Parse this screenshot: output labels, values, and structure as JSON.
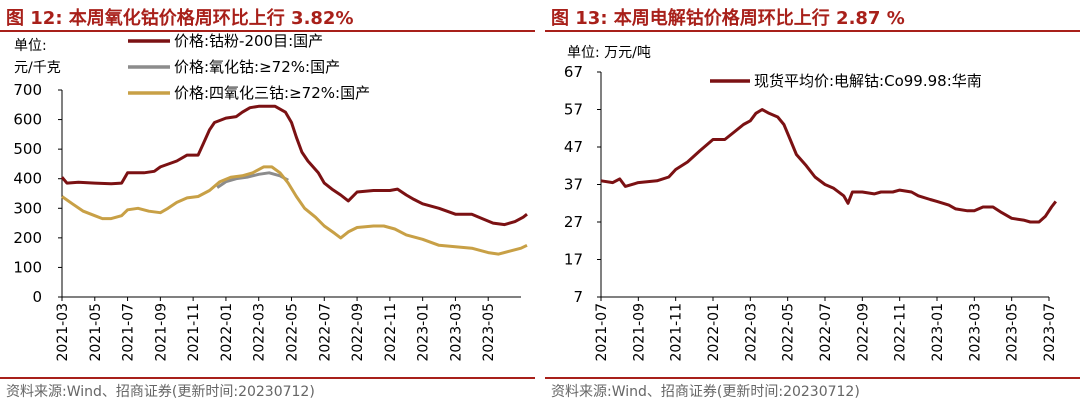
{
  "charts": [
    {
      "figure_title": "图 12:  本周氧化钴价格周环比上行 3.82%",
      "unit_line1": "单位:",
      "unit_line2": "元/千克",
      "source": "资料来源:Wind、招商证券(更新时间:20230712)"
    },
    {
      "figure_title": "图 13:  本周电解钴价格周环比上行 2.87 %",
      "unit_line1": "单位:  万元/吨",
      "source": "资料来源:Wind、招商证券(更新时间:20230712)"
    }
  ],
  "chart_data": [
    {
      "type": "line",
      "title": "图 12:  本周氧化钴价格周环比上行 3.82%",
      "ylabel": "单位: 元/千克",
      "ylim": [
        0,
        700
      ],
      "yticks": [
        0,
        100,
        200,
        300,
        400,
        500,
        600,
        700
      ],
      "xlim": [
        "2021-03",
        "2023-07"
      ],
      "xtick_labels": [
        "2021-03",
        "2021-05",
        "2021-07",
        "2021-09",
        "2021-11",
        "2022-01",
        "2022-03",
        "2022-05",
        "2022-07",
        "2022-09",
        "2022-11",
        "2023-01",
        "2023-03",
        "2023-05"
      ],
      "grid": false,
      "legend_position": "top-left",
      "series": [
        {
          "name": "价格:钴粉-200目:国产",
          "color": "#7b1113",
          "points": [
            [
              "2021-03-01",
              405
            ],
            [
              "2021-03-10",
              385
            ],
            [
              "2021-04-01",
              388
            ],
            [
              "2021-05-01",
              385
            ],
            [
              "2021-06-01",
              383
            ],
            [
              "2021-06-20",
              385
            ],
            [
              "2021-07-01",
              420
            ],
            [
              "2021-08-01",
              420
            ],
            [
              "2021-08-20",
              425
            ],
            [
              "2021-09-01",
              440
            ],
            [
              "2021-10-01",
              460
            ],
            [
              "2021-10-20",
              480
            ],
            [
              "2021-11-10",
              480
            ],
            [
              "2021-11-20",
              520
            ],
            [
              "2021-12-01",
              565
            ],
            [
              "2021-12-10",
              590
            ],
            [
              "2022-01-01",
              605
            ],
            [
              "2022-01-20",
              610
            ],
            [
              "2022-02-01",
              625
            ],
            [
              "2022-02-15",
              640
            ],
            [
              "2022-03-01",
              645
            ],
            [
              "2022-04-01",
              645
            ],
            [
              "2022-04-20",
              625
            ],
            [
              "2022-05-01",
              590
            ],
            [
              "2022-05-10",
              540
            ],
            [
              "2022-05-20",
              490
            ],
            [
              "2022-06-01",
              460
            ],
            [
              "2022-06-20",
              420
            ],
            [
              "2022-07-01",
              385
            ],
            [
              "2022-07-15",
              365
            ],
            [
              "2022-08-01",
              345
            ],
            [
              "2022-08-15",
              325
            ],
            [
              "2022-09-01",
              355
            ],
            [
              "2022-10-01",
              360
            ],
            [
              "2022-11-01",
              360
            ],
            [
              "2022-11-15",
              365
            ],
            [
              "2022-12-01",
              345
            ],
            [
              "2022-12-15",
              330
            ],
            [
              "2023-01-01",
              315
            ],
            [
              "2023-02-01",
              300
            ],
            [
              "2023-03-01",
              280
            ],
            [
              "2023-04-01",
              280
            ],
            [
              "2023-04-20",
              265
            ],
            [
              "2023-05-10",
              250
            ],
            [
              "2023-06-01",
              245
            ],
            [
              "2023-06-20",
              255
            ],
            [
              "2023-07-05",
              270
            ],
            [
              "2023-07-12",
              280
            ]
          ]
        },
        {
          "name": "价格:氧化钴:≥72%:国产",
          "color": "#8c8c8c",
          "points": [
            [
              "2021-12-15",
              370
            ],
            [
              "2022-01-01",
              390
            ],
            [
              "2022-01-20",
              400
            ],
            [
              "2022-02-10",
              405
            ],
            [
              "2022-03-01",
              415
            ],
            [
              "2022-03-20",
              420
            ],
            [
              "2022-04-10",
              410
            ],
            [
              "2022-04-25",
              395
            ]
          ]
        },
        {
          "name": "价格:四氧化三钴:≥72%:国产",
          "color": "#c8a046",
          "points": [
            [
              "2021-03-01",
              340
            ],
            [
              "2021-03-20",
              315
            ],
            [
              "2021-04-10",
              290
            ],
            [
              "2021-05-01",
              275
            ],
            [
              "2021-05-15",
              265
            ],
            [
              "2021-06-01",
              265
            ],
            [
              "2021-06-20",
              275
            ],
            [
              "2021-07-01",
              295
            ],
            [
              "2021-07-20",
              300
            ],
            [
              "2021-08-10",
              290
            ],
            [
              "2021-09-01",
              285
            ],
            [
              "2021-09-15",
              300
            ],
            [
              "2021-10-01",
              320
            ],
            [
              "2021-10-20",
              335
            ],
            [
              "2021-11-10",
              340
            ],
            [
              "2021-12-01",
              360
            ],
            [
              "2021-12-20",
              390
            ],
            [
              "2022-01-10",
              405
            ],
            [
              "2022-02-01",
              410
            ],
            [
              "2022-02-20",
              420
            ],
            [
              "2022-03-10",
              440
            ],
            [
              "2022-03-25",
              440
            ],
            [
              "2022-04-10",
              420
            ],
            [
              "2022-04-25",
              385
            ],
            [
              "2022-05-10",
              340
            ],
            [
              "2022-05-25",
              300
            ],
            [
              "2022-06-15",
              270
            ],
            [
              "2022-07-01",
              240
            ],
            [
              "2022-07-20",
              215
            ],
            [
              "2022-08-01",
              200
            ],
            [
              "2022-08-15",
              220
            ],
            [
              "2022-09-01",
              235
            ],
            [
              "2022-10-01",
              240
            ],
            [
              "2022-10-20",
              240
            ],
            [
              "2022-11-10",
              230
            ],
            [
              "2022-12-01",
              210
            ],
            [
              "2023-01-01",
              195
            ],
            [
              "2023-02-01",
              175
            ],
            [
              "2023-03-01",
              170
            ],
            [
              "2023-04-01",
              165
            ],
            [
              "2023-05-01",
              150
            ],
            [
              "2023-05-20",
              145
            ],
            [
              "2023-06-10",
              155
            ],
            [
              "2023-07-01",
              165
            ],
            [
              "2023-07-12",
              175
            ]
          ]
        }
      ]
    },
    {
      "type": "line",
      "title": "图 13:  本周电解钴价格周环比上行 2.87 %",
      "ylabel": "单位: 万元/吨",
      "ylim": [
        7,
        67
      ],
      "yticks": [
        7,
        17,
        27,
        37,
        47,
        57,
        67
      ],
      "xlim": [
        "2021-07",
        "2023-07"
      ],
      "xtick_labels": [
        "2021-07",
        "2021-09",
        "2021-11",
        "2022-01",
        "2022-03",
        "2022-05",
        "2022-07",
        "2022-09",
        "2022-11",
        "2023-01",
        "2023-03",
        "2023-05",
        "2023-07"
      ],
      "grid": false,
      "legend_position": "top-center",
      "series": [
        {
          "name": "现货平均价:电解钴:Co99.98:华南",
          "color": "#7b1113",
          "points": [
            [
              "2021-07-01",
              38
            ],
            [
              "2021-07-20",
              37.5
            ],
            [
              "2021-08-01",
              38.5
            ],
            [
              "2021-08-10",
              36.5
            ],
            [
              "2021-09-01",
              37.5
            ],
            [
              "2021-10-01",
              38
            ],
            [
              "2021-10-20",
              39
            ],
            [
              "2021-11-01",
              41
            ],
            [
              "2021-11-20",
              43
            ],
            [
              "2021-12-10",
              46
            ],
            [
              "2022-01-01",
              49
            ],
            [
              "2022-01-20",
              49
            ],
            [
              "2022-02-05",
              51
            ],
            [
              "2022-02-20",
              53
            ],
            [
              "2022-03-01",
              54
            ],
            [
              "2022-03-10",
              56
            ],
            [
              "2022-03-20",
              57
            ],
            [
              "2022-04-01",
              56
            ],
            [
              "2022-04-15",
              55
            ],
            [
              "2022-04-25",
              53
            ],
            [
              "2022-05-05",
              49
            ],
            [
              "2022-05-15",
              45
            ],
            [
              "2022-06-01",
              42
            ],
            [
              "2022-06-15",
              39
            ],
            [
              "2022-07-01",
              37
            ],
            [
              "2022-07-15",
              36
            ],
            [
              "2022-08-01",
              34
            ],
            [
              "2022-08-08",
              32
            ],
            [
              "2022-08-15",
              35
            ],
            [
              "2022-09-01",
              35
            ],
            [
              "2022-09-20",
              34.5
            ],
            [
              "2022-10-01",
              35
            ],
            [
              "2022-10-20",
              35
            ],
            [
              "2022-11-01",
              35.5
            ],
            [
              "2022-11-20",
              35
            ],
            [
              "2022-12-01",
              34
            ],
            [
              "2022-12-20",
              33
            ],
            [
              "2023-01-01",
              32.5
            ],
            [
              "2023-01-20",
              31.5
            ],
            [
              "2023-02-01",
              30.5
            ],
            [
              "2023-02-20",
              30
            ],
            [
              "2023-03-01",
              30
            ],
            [
              "2023-03-15",
              31
            ],
            [
              "2023-04-01",
              31
            ],
            [
              "2023-04-15",
              29.5
            ],
            [
              "2023-05-01",
              28
            ],
            [
              "2023-05-20",
              27.5
            ],
            [
              "2023-06-01",
              27
            ],
            [
              "2023-06-15",
              27
            ],
            [
              "2023-06-25",
              28.5
            ],
            [
              "2023-07-05",
              31
            ],
            [
              "2023-07-12",
              32.5
            ]
          ]
        }
      ]
    }
  ]
}
